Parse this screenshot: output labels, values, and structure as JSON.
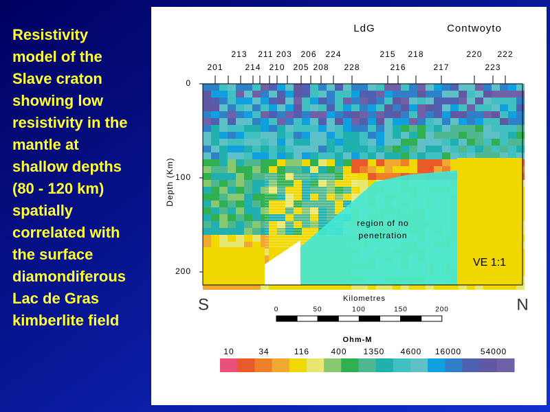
{
  "caption_lines": [
    "Resistivity",
    "model of the",
    "Slave craton",
    "showing low",
    "resistivity in the",
    "mantle at",
    "shallow depths",
    "(80 - 120 km)",
    "spatially",
    "correlated with",
    "the surface",
    "diamondiferous",
    "Lac de Gras",
    "kimberlite field"
  ],
  "places": [
    "LdG",
    "Contwoyto"
  ],
  "stations_top": [
    "213",
    "211 203",
    "206",
    "224",
    "215",
    "218",
    "220",
    "222"
  ],
  "stations_bottom": [
    "201",
    "214",
    "210",
    "205",
    "208",
    "228",
    "216",
    "217",
    "223"
  ],
  "depth_axis": {
    "label": "Depth (Km)",
    "ticks": [
      "0",
      "100",
      "200"
    ]
  },
  "region_label": [
    "region of no",
    "penetration"
  ],
  "ve_label": "VE 1:1",
  "directions": [
    "S",
    "N"
  ],
  "scale": {
    "label": "Kilometres",
    "ticks": [
      "0",
      "50",
      "100",
      "150",
      "200"
    ]
  },
  "legend": {
    "title": "Ohm-M",
    "labels": [
      "10",
      "34",
      "116",
      "400",
      "1350",
      "4600",
      "16000",
      "54000"
    ]
  }
}
